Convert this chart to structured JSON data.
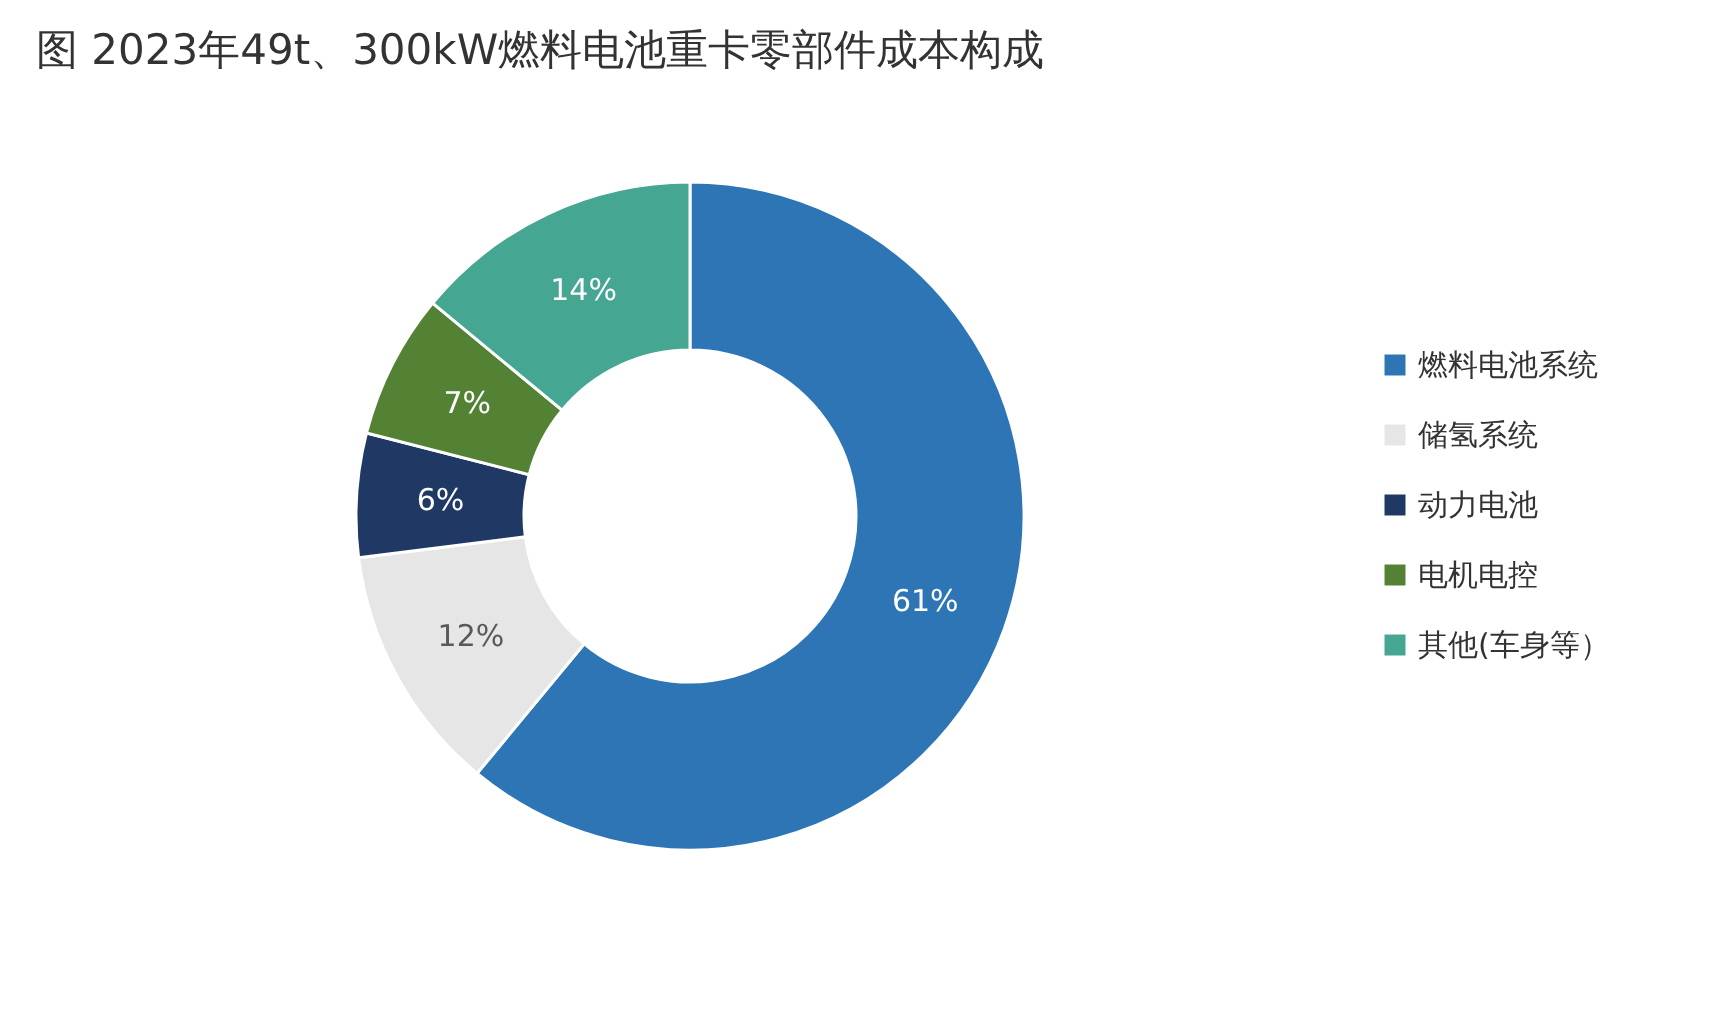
{
  "chart_data": {
    "type": "donut",
    "title": "图 2023年49t、300kW燃料电池重卡零部件成本构成",
    "categories": [
      "燃料电池系统",
      "储氢系统",
      "动力电池",
      "电机电控",
      "其他(车身等）"
    ],
    "values": [
      61,
      12,
      6,
      7,
      14
    ],
    "value_labels": [
      "61%",
      "12%",
      "6%",
      "7%",
      "14%"
    ],
    "colors": [
      "#2e75b6",
      "#e7e6e6",
      "#1f3864",
      "#548235",
      "#45a691"
    ],
    "legend": "right"
  }
}
